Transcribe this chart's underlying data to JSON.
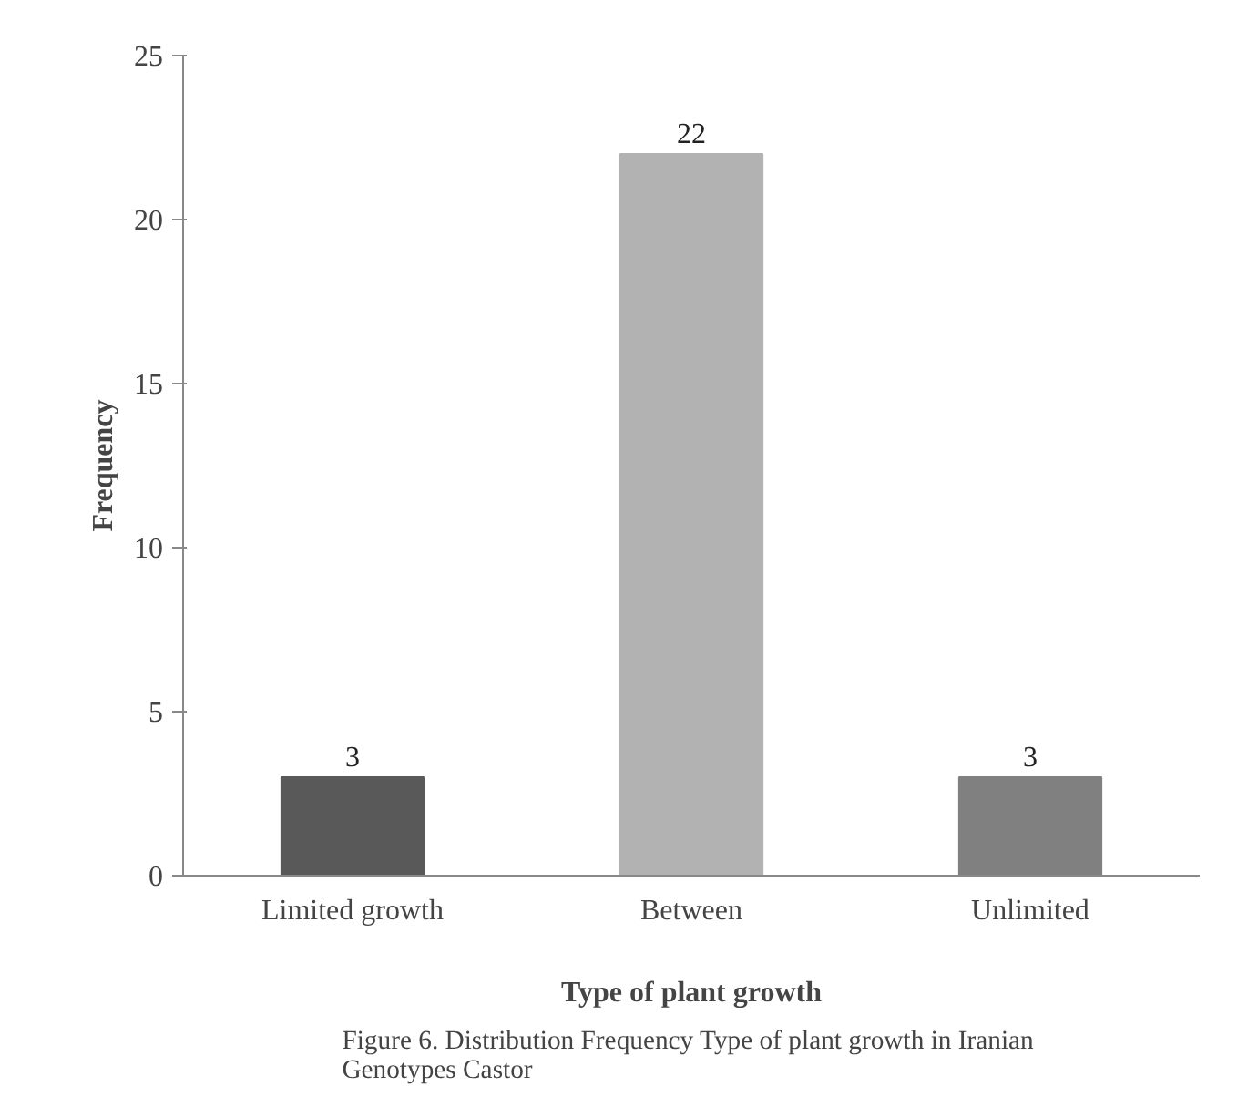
{
  "chart_data": {
    "type": "bar",
    "categories": [
      "Limited growth",
      "Between",
      "Unlimited"
    ],
    "values": [
      3,
      22,
      3
    ],
    "colors": [
      "#595959",
      "#b2b2b2",
      "#808080"
    ],
    "ylim": [
      0,
      25
    ],
    "yticks": [
      0,
      5,
      10,
      15,
      20,
      25
    ],
    "xlabel": "Type of plant growth",
    "ylabel": "Frequency",
    "data_labels": true,
    "annotations": [
      "Figure 6. Distribution Frequency Type of plant growth in  Iranian Genotypes Castor"
    ]
  }
}
